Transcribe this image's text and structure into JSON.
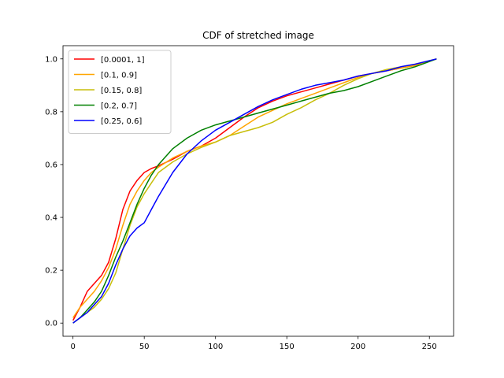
{
  "chart_data": {
    "type": "line",
    "title": "CDF of stretched image",
    "xlabel": "",
    "ylabel": "",
    "xlim": [
      -7,
      267
    ],
    "ylim": [
      -0.05,
      1.05
    ],
    "xticks": [
      0,
      50,
      100,
      150,
      200,
      250
    ],
    "yticks": [
      0.0,
      0.2,
      0.4,
      0.6,
      0.8,
      1.0
    ],
    "xtick_labels": [
      "0",
      "50",
      "100",
      "150",
      "200",
      "250"
    ],
    "ytick_labels": [
      "0.0",
      "0.2",
      "0.4",
      "0.6",
      "0.8",
      "1.0"
    ],
    "grid": false,
    "legend_position": "upper-left",
    "series": [
      {
        "name": "[0.0001, 1]",
        "color": "#ff0000",
        "x": [
          0,
          5,
          10,
          15,
          20,
          25,
          30,
          35,
          40,
          45,
          50,
          55,
          60,
          70,
          80,
          90,
          100,
          110,
          120,
          130,
          140,
          150,
          160,
          170,
          180,
          190,
          200,
          210,
          220,
          230,
          240,
          255
        ],
        "y": [
          0.01,
          0.06,
          0.12,
          0.15,
          0.18,
          0.23,
          0.32,
          0.43,
          0.5,
          0.54,
          0.57,
          0.585,
          0.595,
          0.62,
          0.65,
          0.67,
          0.7,
          0.74,
          0.78,
          0.815,
          0.84,
          0.86,
          0.875,
          0.89,
          0.905,
          0.92,
          0.935,
          0.945,
          0.955,
          0.965,
          0.975,
          1.0
        ]
      },
      {
        "name": "[0.1, 0.9]",
        "color": "#ffa500",
        "x": [
          0,
          5,
          10,
          15,
          20,
          25,
          30,
          35,
          40,
          45,
          50,
          55,
          60,
          70,
          80,
          90,
          100,
          110,
          120,
          130,
          140,
          150,
          160,
          170,
          180,
          190,
          200,
          210,
          220,
          230,
          240,
          255
        ],
        "y": [
          0.02,
          0.06,
          0.09,
          0.12,
          0.16,
          0.21,
          0.28,
          0.37,
          0.45,
          0.5,
          0.54,
          0.57,
          0.59,
          0.625,
          0.65,
          0.67,
          0.685,
          0.71,
          0.745,
          0.78,
          0.805,
          0.83,
          0.85,
          0.87,
          0.89,
          0.91,
          0.93,
          0.945,
          0.955,
          0.965,
          0.975,
          1.0
        ]
      },
      {
        "name": "[0.15, 0.8]",
        "color": "#c8be0a",
        "x": [
          0,
          5,
          10,
          15,
          20,
          25,
          30,
          35,
          40,
          45,
          50,
          55,
          60,
          70,
          80,
          90,
          100,
          110,
          120,
          130,
          140,
          150,
          160,
          170,
          180,
          190,
          200,
          210,
          220,
          230,
          240,
          255
        ],
        "y": [
          0.0,
          0.02,
          0.04,
          0.06,
          0.09,
          0.13,
          0.19,
          0.28,
          0.37,
          0.44,
          0.49,
          0.53,
          0.57,
          0.61,
          0.64,
          0.665,
          0.685,
          0.71,
          0.725,
          0.74,
          0.76,
          0.79,
          0.815,
          0.845,
          0.87,
          0.9,
          0.925,
          0.945,
          0.96,
          0.97,
          0.98,
          1.0
        ]
      },
      {
        "name": "[0.2, 0.7]",
        "color": "#008000",
        "x": [
          0,
          5,
          10,
          15,
          20,
          25,
          30,
          35,
          40,
          45,
          50,
          55,
          60,
          70,
          80,
          90,
          100,
          110,
          120,
          130,
          140,
          150,
          160,
          170,
          180,
          190,
          200,
          210,
          220,
          230,
          240,
          255
        ],
        "y": [
          0.0,
          0.02,
          0.05,
          0.08,
          0.12,
          0.18,
          0.25,
          0.31,
          0.38,
          0.45,
          0.51,
          0.56,
          0.6,
          0.66,
          0.7,
          0.73,
          0.75,
          0.765,
          0.78,
          0.795,
          0.81,
          0.825,
          0.84,
          0.855,
          0.87,
          0.88,
          0.895,
          0.915,
          0.935,
          0.955,
          0.97,
          1.0
        ]
      },
      {
        "name": "[0.25, 0.6]",
        "color": "#0000ff",
        "x": [
          0,
          5,
          10,
          15,
          20,
          25,
          30,
          35,
          40,
          45,
          50,
          55,
          60,
          70,
          80,
          90,
          100,
          110,
          120,
          130,
          140,
          150,
          160,
          170,
          180,
          190,
          200,
          210,
          220,
          230,
          240,
          255
        ],
        "y": [
          0.0,
          0.02,
          0.04,
          0.07,
          0.1,
          0.15,
          0.22,
          0.28,
          0.33,
          0.36,
          0.38,
          0.43,
          0.48,
          0.57,
          0.64,
          0.69,
          0.73,
          0.76,
          0.79,
          0.82,
          0.845,
          0.865,
          0.885,
          0.9,
          0.91,
          0.92,
          0.935,
          0.945,
          0.955,
          0.97,
          0.98,
          1.0
        ]
      }
    ]
  }
}
